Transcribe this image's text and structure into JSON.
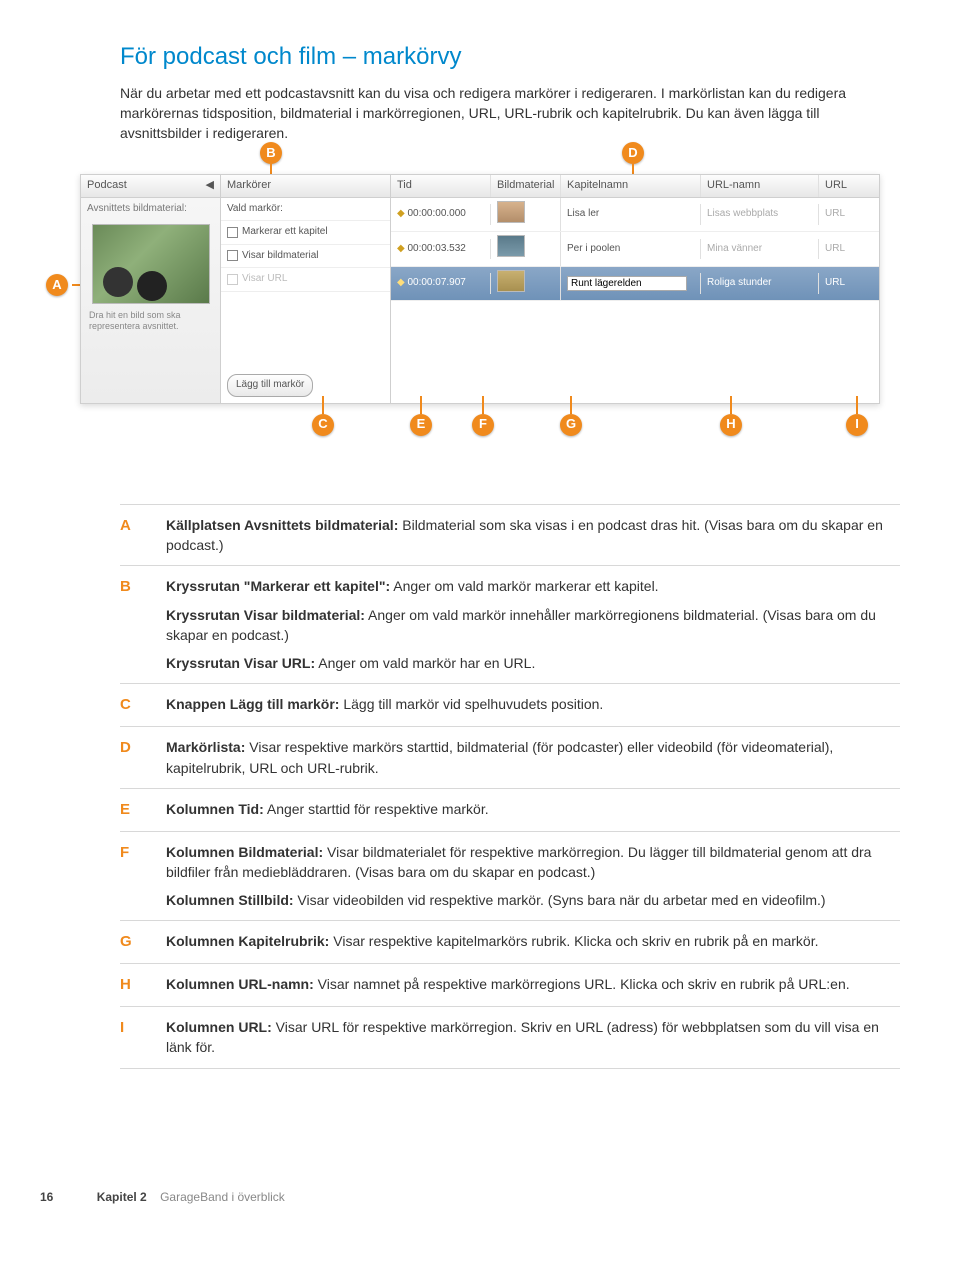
{
  "title": "För podcast och film – markörvy",
  "intro": "När du arbetar med ett podcastavsnitt kan du visa och redigera markörer i redigeraren. I markörlistan kan du redigera markörernas tidsposition, bildmaterial i markörregionen, URL, URL-rubrik och kapitelrubrik. Du kan även lägga till avsnittsbilder i redigeraren.",
  "screenshot": {
    "panel_left": {
      "header": "Podcast",
      "subheader": "Avsnittets bildmaterial:",
      "drop_hint": "Dra hit en bild som ska representera avsnittet."
    },
    "panel_mid": {
      "header": "Markörer",
      "vald": "Vald markör:",
      "opt1": "Markerar ett kapitel",
      "opt2": "Visar bildmaterial",
      "opt3": "Visar URL",
      "add_btn": "Lägg till markör"
    },
    "columns": {
      "tid": "Tid",
      "bild": "Bildmaterial",
      "kap": "Kapitelnamn",
      "urlnamn": "URL-namn",
      "url": "URL"
    },
    "rows": [
      {
        "time": "00:00:00.000",
        "kap": "Lisa ler",
        "urln": "Lisas webbplats",
        "url": "URL"
      },
      {
        "time": "00:00:03.532",
        "kap": "Per i poolen",
        "urln": "Mina vänner",
        "url": "URL"
      },
      {
        "time": "00:00:07.907",
        "kap": "Runt lägerelden",
        "urln": "Roliga stunder",
        "url": "URL"
      }
    ],
    "badges": {
      "a": "A",
      "b": "B",
      "c": "C",
      "d": "D",
      "e": "E",
      "f": "F",
      "g": "G",
      "h": "H",
      "i": "I"
    }
  },
  "defs": [
    {
      "key": "A",
      "paras": [
        {
          "bold": "Källplatsen Avsnittets bildmaterial:",
          "rest": " Bildmaterial som ska visas i en podcast dras hit. (Visas bara om du skapar en podcast.)"
        }
      ]
    },
    {
      "key": "B",
      "paras": [
        {
          "bold": "Kryssrutan \"Markerar ett kapitel\":",
          "rest": " Anger om vald markör markerar ett kapitel."
        },
        {
          "bold": "Kryssrutan Visar bildmaterial:",
          "rest": " Anger om vald markör innehåller markörregionens bildmaterial. (Visas bara om du skapar en podcast.)"
        },
        {
          "bold": "Kryssrutan Visar URL:",
          "rest": " Anger om vald markör har en URL."
        }
      ]
    },
    {
      "key": "C",
      "paras": [
        {
          "bold": "Knappen Lägg till markör:",
          "rest": " Lägg till markör vid spelhuvudets position."
        }
      ]
    },
    {
      "key": "D",
      "paras": [
        {
          "bold": "Markörlista:",
          "rest": " Visar respektive markörs starttid, bildmaterial (för podcaster) eller videobild (för videomaterial), kapitelrubrik, URL och URL-rubrik."
        }
      ]
    },
    {
      "key": "E",
      "paras": [
        {
          "bold": "Kolumnen Tid:",
          "rest": " Anger starttid för respektive markör."
        }
      ]
    },
    {
      "key": "F",
      "paras": [
        {
          "bold": "Kolumnen Bildmaterial:",
          "rest": " Visar bildmaterialet för respektive markörregion. Du lägger till bildmaterial genom att dra bildfiler från mediebläddraren. (Visas bara om du skapar en podcast.)"
        },
        {
          "bold": "Kolumnen Stillbild:",
          "rest": " Visar videobilden vid respektive markör. (Syns bara när du arbetar med en videofilm.)"
        }
      ]
    },
    {
      "key": "G",
      "paras": [
        {
          "bold": "Kolumnen Kapitelrubrik:",
          "rest": " Visar respektive kapitelmarkörs rubrik. Klicka och skriv en rubrik på en markör."
        }
      ]
    },
    {
      "key": "H",
      "paras": [
        {
          "bold": "Kolumnen URL-namn:",
          "rest": " Visar namnet på respektive markörregions URL. Klicka och skriv en rubrik på URL:en."
        }
      ]
    },
    {
      "key": "I",
      "paras": [
        {
          "bold": "Kolumnen URL:",
          "rest": " Visar URL för respektive markörregion. Skriv en URL (adress) för webbplatsen som du vill visa en länk för."
        }
      ]
    }
  ],
  "footer": {
    "pagenum": "16",
    "chapter": "Kapitel 2",
    "title": "GarageBand i överblick"
  }
}
